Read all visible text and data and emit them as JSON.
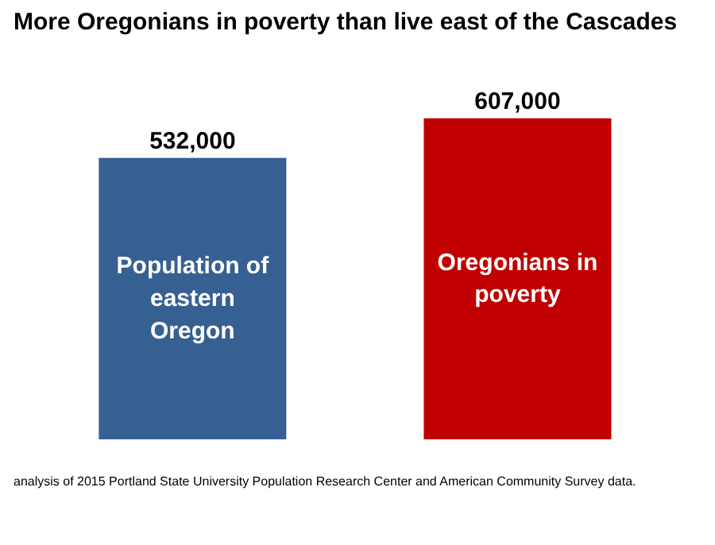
{
  "chart_data": {
    "type": "bar",
    "title": "More Oregonians in poverty than live east of the Cascades",
    "categories": [
      "Population of eastern Oregon",
      "Oregonians in poverty"
    ],
    "values": [
      532000,
      607000
    ],
    "colors": [
      "#376092",
      "#c00000"
    ],
    "value_labels": [
      "532,000",
      "607,000"
    ],
    "grid": false,
    "annotations": [
      "analysis of 2015 Portland State University Population Research Center and American Community Survey data."
    ]
  }
}
